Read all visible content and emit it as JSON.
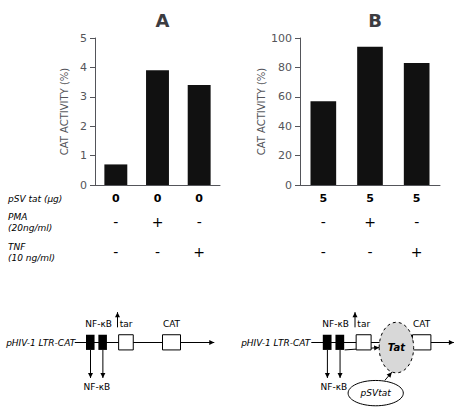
{
  "chart_data": [
    {
      "type": "bar",
      "title": "A",
      "categories": [
        "0",
        "0",
        "0"
      ],
      "xlabel": "pSV tat (μg)",
      "values": [
        0.7,
        3.9,
        3.4
      ],
      "color": "#111111",
      "ylabel": "CAT ACTIVITY (%)",
      "ylim": [
        0,
        5
      ],
      "yticks": [
        0,
        1,
        2,
        3,
        4,
        5
      ],
      "grid": false,
      "annotation_rows": [
        {
          "label": "PMA\n(20ng/ml)",
          "values": [
            "-",
            "+",
            "-"
          ]
        },
        {
          "label": "TNF\n(10 ng/ml)",
          "values": [
            "-",
            "-",
            "+"
          ]
        }
      ],
      "annotations": [
        "pHIV-1 LTR-CAT",
        "NF-κB",
        "tar",
        "CAT",
        "NF-κB"
      ]
    },
    {
      "type": "bar",
      "title": "B",
      "categories": [
        "5",
        "5",
        "5"
      ],
      "values": [
        57,
        94,
        83
      ],
      "color": "#111111",
      "ylabel": "CAT ACTIVITY (%)",
      "ylim": [
        0,
        100
      ],
      "yticks": [
        0,
        20,
        40,
        60,
        80,
        100
      ],
      "grid": false,
      "annotation_rows": [
        {
          "values": [
            "-",
            "+",
            "-"
          ]
        },
        {
          "values": [
            "-",
            "-",
            "+"
          ]
        }
      ],
      "annotations": [
        "pHIV-1 LTR-CAT",
        "NF-κB",
        "tar",
        "CAT",
        "NF-κB",
        "Tat",
        "pSVtat"
      ]
    }
  ]
}
